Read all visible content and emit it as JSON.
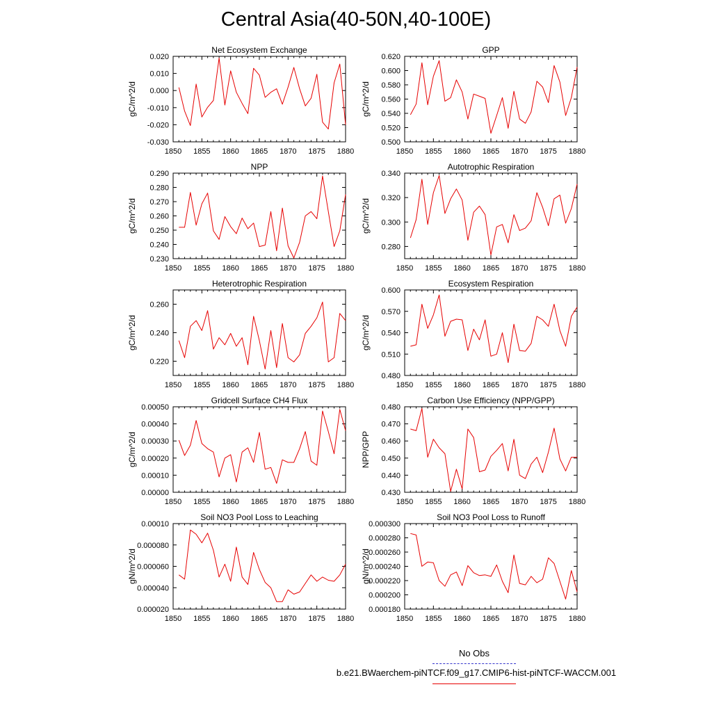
{
  "title": "Central Asia(40-50N,40-100E)",
  "legend": {
    "entries": [
      {
        "label": "No Obs",
        "style": "dashed",
        "color": "#3333cc"
      },
      {
        "label": "b.e21.BWaerchem-piNTCF.f09_g17.CMIP6-hist-piNTCF-WACCM.001",
        "style": "solid",
        "color": "#e60000"
      }
    ]
  },
  "chart_data": [
    {
      "type": "line",
      "title": "Net Ecosystem Exchange",
      "ylabel": "gC/m^2/d",
      "xlim": [
        1850,
        1880
      ],
      "xticks": [
        "1850",
        "1855",
        "1860",
        "1865",
        "1870",
        "1875",
        "1880"
      ],
      "ylim": [
        -0.03,
        0.02
      ],
      "yticks": [
        "-0.030",
        "-0.020",
        "-0.010",
        "0.000",
        "0.010",
        "0.020"
      ],
      "color": "#e60000",
      "x": [
        1851,
        1852,
        1853,
        1854,
        1855,
        1856,
        1857,
        1858,
        1859,
        1860,
        1861,
        1862,
        1863,
        1864,
        1865,
        1866,
        1867,
        1868,
        1869,
        1870,
        1871,
        1872,
        1873,
        1874,
        1875,
        1876,
        1877,
        1878,
        1879,
        1880
      ],
      "values": [
        0.0018,
        -0.012,
        -0.0205,
        0.0038,
        -0.0155,
        -0.0098,
        -0.0058,
        0.019,
        -0.0085,
        0.0115,
        -0.001,
        -0.0075,
        -0.0135,
        0.013,
        0.009,
        -0.004,
        -0.001,
        0.001,
        -0.008,
        0.002,
        0.0135,
        0.001,
        -0.009,
        -0.0045,
        0.0095,
        -0.0185,
        -0.0225,
        0.0045,
        0.0155,
        -0.02
      ]
    },
    {
      "type": "line",
      "title": "GPP",
      "ylabel": "gC/m^2/d",
      "xlim": [
        1850,
        1880
      ],
      "xticks": [
        "1850",
        "1855",
        "1860",
        "1865",
        "1870",
        "1875",
        "1880"
      ],
      "ylim": [
        0.5,
        0.62
      ],
      "yticks": [
        "0.500",
        "0.520",
        "0.540",
        "0.560",
        "0.580",
        "0.600",
        "0.620"
      ],
      "color": "#e60000",
      "x": [
        1851,
        1852,
        1853,
        1854,
        1855,
        1856,
        1857,
        1858,
        1859,
        1860,
        1861,
        1862,
        1863,
        1864,
        1865,
        1866,
        1867,
        1868,
        1869,
        1870,
        1871,
        1872,
        1873,
        1874,
        1875,
        1876,
        1877,
        1878,
        1879,
        1880
      ],
      "values": [
        0.538,
        0.553,
        0.611,
        0.552,
        0.592,
        0.614,
        0.557,
        0.562,
        0.587,
        0.57,
        0.532,
        0.567,
        0.564,
        0.561,
        0.512,
        0.537,
        0.562,
        0.519,
        0.571,
        0.532,
        0.526,
        0.542,
        0.585,
        0.577,
        0.555,
        0.607,
        0.584,
        0.537,
        0.562,
        0.605
      ]
    },
    {
      "type": "line",
      "title": "NPP",
      "ylabel": "gC/m^2/d",
      "xlim": [
        1850,
        1880
      ],
      "xticks": [
        "1850",
        "1855",
        "1860",
        "1865",
        "1870",
        "1875",
        "1880"
      ],
      "ylim": [
        0.23,
        0.29
      ],
      "yticks": [
        "0.230",
        "0.240",
        "0.250",
        "0.260",
        "0.270",
        "0.280",
        "0.290"
      ],
      "color": "#e60000",
      "x": [
        1851,
        1852,
        1853,
        1854,
        1855,
        1856,
        1857,
        1858,
        1859,
        1860,
        1861,
        1862,
        1863,
        1864,
        1865,
        1866,
        1867,
        1868,
        1869,
        1870,
        1871,
        1872,
        1873,
        1874,
        1875,
        1876,
        1877,
        1878,
        1879,
        1880
      ],
      "values": [
        0.252,
        0.252,
        0.2765,
        0.2535,
        0.2685,
        0.276,
        0.2495,
        0.2435,
        0.2595,
        0.2525,
        0.2475,
        0.2585,
        0.251,
        0.255,
        0.2385,
        0.2395,
        0.263,
        0.2355,
        0.2655,
        0.239,
        0.2305,
        0.2415,
        0.26,
        0.263,
        0.258,
        0.288,
        0.263,
        0.2385,
        0.2495,
        0.275
      ]
    },
    {
      "type": "line",
      "title": "Autotrophic Respiration",
      "ylabel": "gC/m^2/d",
      "xlim": [
        1850,
        1880
      ],
      "xticks": [
        "1850",
        "1855",
        "1860",
        "1865",
        "1870",
        "1875",
        "1880"
      ],
      "ylim": [
        0.27,
        0.34
      ],
      "yticks": [
        "0.280",
        "0.300",
        "0.320",
        "0.340"
      ],
      "color": "#e60000",
      "x": [
        1851,
        1852,
        1853,
        1854,
        1855,
        1856,
        1857,
        1858,
        1859,
        1860,
        1861,
        1862,
        1863,
        1864,
        1865,
        1866,
        1867,
        1868,
        1869,
        1870,
        1871,
        1872,
        1873,
        1874,
        1875,
        1876,
        1877,
        1878,
        1879,
        1880
      ],
      "values": [
        0.287,
        0.302,
        0.335,
        0.298,
        0.324,
        0.338,
        0.307,
        0.319,
        0.327,
        0.318,
        0.285,
        0.308,
        0.313,
        0.306,
        0.273,
        0.296,
        0.298,
        0.283,
        0.306,
        0.293,
        0.295,
        0.301,
        0.324,
        0.312,
        0.297,
        0.319,
        0.322,
        0.299,
        0.311,
        0.331
      ]
    },
    {
      "type": "line",
      "title": "Heterotrophic Respiration",
      "ylabel": "gC/m^2/d",
      "xlim": [
        1850,
        1880
      ],
      "xticks": [
        "1850",
        "1855",
        "1860",
        "1865",
        "1870",
        "1875",
        "1880"
      ],
      "ylim": [
        0.21,
        0.27
      ],
      "yticks": [
        "0.220",
        "0.240",
        "0.260"
      ],
      "color": "#e60000",
      "x": [
        1851,
        1852,
        1853,
        1854,
        1855,
        1856,
        1857,
        1858,
        1859,
        1860,
        1861,
        1862,
        1863,
        1864,
        1865,
        1866,
        1867,
        1868,
        1869,
        1870,
        1871,
        1872,
        1873,
        1874,
        1875,
        1876,
        1877,
        1878,
        1879,
        1880
      ],
      "values": [
        0.2345,
        0.2225,
        0.2445,
        0.2485,
        0.2415,
        0.2555,
        0.2285,
        0.2365,
        0.2315,
        0.2395,
        0.2305,
        0.2365,
        0.2175,
        0.2515,
        0.2345,
        0.2145,
        0.2415,
        0.2155,
        0.2465,
        0.2225,
        0.2195,
        0.2245,
        0.2395,
        0.2445,
        0.2505,
        0.2615,
        0.2195,
        0.2225,
        0.2535,
        0.2485
      ]
    },
    {
      "type": "line",
      "title": "Ecosystem Respiration",
      "ylabel": "gC/m^2/d",
      "xlim": [
        1850,
        1880
      ],
      "xticks": [
        "1850",
        "1855",
        "1860",
        "1865",
        "1870",
        "1875",
        "1880"
      ],
      "ylim": [
        0.48,
        0.6
      ],
      "yticks": [
        "0.480",
        "0.510",
        "0.540",
        "0.570",
        "0.600"
      ],
      "color": "#e60000",
      "x": [
        1851,
        1852,
        1853,
        1854,
        1855,
        1856,
        1857,
        1858,
        1859,
        1860,
        1861,
        1862,
        1863,
        1864,
        1865,
        1866,
        1867,
        1868,
        1869,
        1870,
        1871,
        1872,
        1873,
        1874,
        1875,
        1876,
        1877,
        1878,
        1879,
        1880
      ],
      "values": [
        0.521,
        0.523,
        0.58,
        0.546,
        0.565,
        0.593,
        0.535,
        0.556,
        0.559,
        0.558,
        0.515,
        0.545,
        0.53,
        0.558,
        0.507,
        0.51,
        0.54,
        0.498,
        0.552,
        0.515,
        0.514,
        0.525,
        0.563,
        0.558,
        0.549,
        0.58,
        0.543,
        0.521,
        0.563,
        0.576
      ]
    },
    {
      "type": "line",
      "title": "Gridcell Surface CH4 Flux",
      "ylabel": "gC/m^2/d",
      "xlim": [
        1850,
        1880
      ],
      "xticks": [
        "1850",
        "1855",
        "1860",
        "1865",
        "1870",
        "1875",
        "1880"
      ],
      "ylim": [
        0,
        0.0005
      ],
      "yticks": [
        "0.00000",
        "0.00010",
        "0.00020",
        "0.00030",
        "0.00040",
        "0.00050"
      ],
      "color": "#e60000",
      "x": [
        1851,
        1852,
        1853,
        1854,
        1855,
        1856,
        1857,
        1858,
        1859,
        1860,
        1861,
        1862,
        1863,
        1864,
        1865,
        1866,
        1867,
        1868,
        1869,
        1870,
        1871,
        1872,
        1873,
        1874,
        1875,
        1876,
        1877,
        1878,
        1879,
        1880
      ],
      "values": [
        0.000305,
        0.000215,
        0.000275,
        0.00042,
        0.000285,
        0.000255,
        0.000235,
        9e-05,
        0.0002,
        0.00022,
        6e-05,
        0.000235,
        0.00026,
        0.000175,
        0.00035,
        0.000135,
        0.000145,
        5.2e-05,
        0.00019,
        0.000175,
        0.000175,
        0.000255,
        0.000355,
        0.000182,
        0.000158,
        0.000475,
        0.000355,
        0.000225,
        0.000485,
        0.00036
      ]
    },
    {
      "type": "line",
      "title": "Carbon Use Efficiency (NPP/GPP)",
      "ylabel": "NPP/GPP",
      "xlim": [
        1850,
        1880
      ],
      "xticks": [
        "1850",
        "1855",
        "1860",
        "1865",
        "1870",
        "1875",
        "1880"
      ],
      "ylim": [
        0.43,
        0.48
      ],
      "yticks": [
        "0.430",
        "0.440",
        "0.450",
        "0.460",
        "0.470",
        "0.480"
      ],
      "color": "#e60000",
      "x": [
        1851,
        1852,
        1853,
        1854,
        1855,
        1856,
        1857,
        1858,
        1859,
        1860,
        1861,
        1862,
        1863,
        1864,
        1865,
        1866,
        1867,
        1868,
        1869,
        1870,
        1871,
        1872,
        1873,
        1874,
        1875,
        1876,
        1877,
        1878,
        1879,
        1880
      ],
      "values": [
        0.467,
        0.466,
        0.479,
        0.4505,
        0.461,
        0.456,
        0.4525,
        0.4305,
        0.4435,
        0.432,
        0.467,
        0.462,
        0.442,
        0.443,
        0.451,
        0.4545,
        0.4585,
        0.4425,
        0.461,
        0.44,
        0.438,
        0.4465,
        0.4505,
        0.4415,
        0.4535,
        0.4675,
        0.4495,
        0.4425,
        0.4505,
        0.4505
      ]
    },
    {
      "type": "line",
      "title": "Soil NO3 Pool Loss to Leaching",
      "ylabel": "gN/m^2/d",
      "xlim": [
        1850,
        1880
      ],
      "xticks": [
        "1850",
        "1855",
        "1860",
        "1865",
        "1870",
        "1875",
        "1880"
      ],
      "ylim": [
        2e-05,
        0.0001
      ],
      "yticks": [
        "0.000020",
        "0.000040",
        "0.000060",
        "0.000080",
        "0.00010"
      ],
      "color": "#e60000",
      "x": [
        1851,
        1852,
        1853,
        1854,
        1855,
        1856,
        1857,
        1858,
        1859,
        1860,
        1861,
        1862,
        1863,
        1864,
        1865,
        1866,
        1867,
        1868,
        1869,
        1870,
        1871,
        1872,
        1873,
        1874,
        1875,
        1876,
        1877,
        1878,
        1879,
        1880
      ],
      "values": [
        5.2e-05,
        4.8e-05,
        9.4e-05,
        9e-05,
        8.2e-05,
        9.1e-05,
        7.5e-05,
        5e-05,
        6.2e-05,
        4.6e-05,
        7.8e-05,
        5e-05,
        4.3e-05,
        7.3e-05,
        5.7e-05,
        4.5e-05,
        4e-05,
        2.7e-05,
        2.7e-05,
        3.8e-05,
        3.4e-05,
        3.6e-05,
        4.4e-05,
        5.2e-05,
        4.6e-05,
        5e-05,
        4.7e-05,
        4.6e-05,
        5.2e-05,
        6.2e-05
      ]
    },
    {
      "type": "line",
      "title": "Soil NO3 Pool Loss to Runoff",
      "ylabel": "gN/m^2/d",
      "xlim": [
        1850,
        1880
      ],
      "xticks": [
        "1850",
        "1855",
        "1860",
        "1865",
        "1870",
        "1875",
        "1880"
      ],
      "ylim": [
        0.00018,
        0.0003
      ],
      "yticks": [
        "0.000180",
        "0.000200",
        "0.000220",
        "0.000240",
        "0.000260",
        "0.000280",
        "0.000300"
      ],
      "color": "#e60000",
      "x": [
        1851,
        1852,
        1853,
        1854,
        1855,
        1856,
        1857,
        1858,
        1859,
        1860,
        1861,
        1862,
        1863,
        1864,
        1865,
        1866,
        1867,
        1868,
        1869,
        1870,
        1871,
        1872,
        1873,
        1874,
        1875,
        1876,
        1877,
        1878,
        1879,
        1880
      ],
      "values": [
        0.000286,
        0.000284,
        0.00024,
        0.000246,
        0.000245,
        0.00022,
        0.000212,
        0.000228,
        0.000232,
        0.000213,
        0.000241,
        0.000231,
        0.000227,
        0.000228,
        0.000226,
        0.000242,
        0.000219,
        0.000203,
        0.000256,
        0.000216,
        0.000214,
        0.000226,
        0.000217,
        0.000222,
        0.000252,
        0.000244,
        0.000219,
        0.000194,
        0.000234,
        0.000204
      ]
    }
  ]
}
